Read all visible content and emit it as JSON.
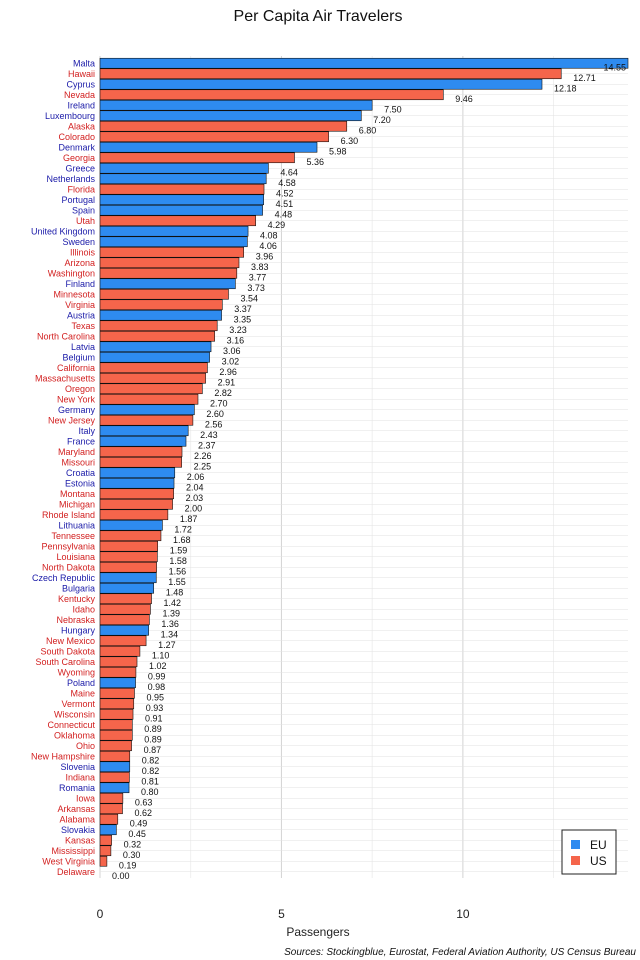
{
  "chart_data": {
    "type": "bar",
    "orientation": "horizontal",
    "title": "Per Capita Air Travelers",
    "xlabel": "Passengers",
    "source": "Sources: Stockingblue, Eurostat, Federal Aviation Authority, US Census Bureau",
    "xlim": [
      0,
      14.55
    ],
    "xticks": [
      0,
      5,
      10
    ],
    "grid": true,
    "legend_position": "bottom-right",
    "legend": [
      {
        "name": "EU",
        "color": "#2e8bf0"
      },
      {
        "name": "US",
        "color": "#f5654b"
      }
    ],
    "colors": {
      "EU": "#2e8bf0",
      "US": "#f5654b",
      "label_EU": "#1a1aa8",
      "label_US": "#d21f1f"
    },
    "bars": [
      {
        "label": "Malta",
        "value": 14.55,
        "group": "EU"
      },
      {
        "label": "Hawaii",
        "value": 12.71,
        "group": "US"
      },
      {
        "label": "Cyprus",
        "value": 12.18,
        "group": "EU"
      },
      {
        "label": "Nevada",
        "value": 9.46,
        "group": "US"
      },
      {
        "label": "Ireland",
        "value": 7.5,
        "group": "EU"
      },
      {
        "label": "Luxembourg",
        "value": 7.2,
        "group": "EU"
      },
      {
        "label": "Alaska",
        "value": 6.8,
        "group": "US"
      },
      {
        "label": "Colorado",
        "value": 6.3,
        "group": "US"
      },
      {
        "label": "Denmark",
        "value": 5.98,
        "group": "EU"
      },
      {
        "label": "Georgia",
        "value": 5.36,
        "group": "US"
      },
      {
        "label": "Greece",
        "value": 4.64,
        "group": "EU"
      },
      {
        "label": "Netherlands",
        "value": 4.58,
        "group": "EU"
      },
      {
        "label": "Florida",
        "value": 4.52,
        "group": "US"
      },
      {
        "label": "Portugal",
        "value": 4.51,
        "group": "EU"
      },
      {
        "label": "Spain",
        "value": 4.48,
        "group": "EU"
      },
      {
        "label": "Utah",
        "value": 4.29,
        "group": "US"
      },
      {
        "label": "United Kingdom",
        "value": 4.08,
        "group": "EU"
      },
      {
        "label": "Sweden",
        "value": 4.06,
        "group": "EU"
      },
      {
        "label": "Illinois",
        "value": 3.96,
        "group": "US"
      },
      {
        "label": "Arizona",
        "value": 3.83,
        "group": "US"
      },
      {
        "label": "Washington",
        "value": 3.77,
        "group": "US"
      },
      {
        "label": "Finland",
        "value": 3.73,
        "group": "EU"
      },
      {
        "label": "Minnesota",
        "value": 3.54,
        "group": "US"
      },
      {
        "label": "Virginia",
        "value": 3.37,
        "group": "US"
      },
      {
        "label": "Austria",
        "value": 3.35,
        "group": "EU"
      },
      {
        "label": "Texas",
        "value": 3.23,
        "group": "US"
      },
      {
        "label": "North Carolina",
        "value": 3.16,
        "group": "US"
      },
      {
        "label": "Latvia",
        "value": 3.06,
        "group": "EU"
      },
      {
        "label": "Belgium",
        "value": 3.02,
        "group": "EU"
      },
      {
        "label": "California",
        "value": 2.96,
        "group": "US"
      },
      {
        "label": "Massachusetts",
        "value": 2.91,
        "group": "US"
      },
      {
        "label": "Oregon",
        "value": 2.82,
        "group": "US"
      },
      {
        "label": "New York",
        "value": 2.7,
        "group": "US"
      },
      {
        "label": "Germany",
        "value": 2.6,
        "group": "EU"
      },
      {
        "label": "New Jersey",
        "value": 2.56,
        "group": "US"
      },
      {
        "label": "Italy",
        "value": 2.43,
        "group": "EU"
      },
      {
        "label": "France",
        "value": 2.37,
        "group": "EU"
      },
      {
        "label": "Maryland",
        "value": 2.26,
        "group": "US"
      },
      {
        "label": "Missouri",
        "value": 2.25,
        "group": "US"
      },
      {
        "label": "Croatia",
        "value": 2.06,
        "group": "EU"
      },
      {
        "label": "Estonia",
        "value": 2.04,
        "group": "EU"
      },
      {
        "label": "Montana",
        "value": 2.03,
        "group": "US"
      },
      {
        "label": "Michigan",
        "value": 2.0,
        "group": "US"
      },
      {
        "label": "Rhode Island",
        "value": 1.87,
        "group": "US"
      },
      {
        "label": "Lithuania",
        "value": 1.72,
        "group": "EU"
      },
      {
        "label": "Tennessee",
        "value": 1.68,
        "group": "US"
      },
      {
        "label": "Pennsylvania",
        "value": 1.59,
        "group": "US"
      },
      {
        "label": "Louisiana",
        "value": 1.58,
        "group": "US"
      },
      {
        "label": "North Dakota",
        "value": 1.56,
        "group": "US"
      },
      {
        "label": "Czech Republic",
        "value": 1.55,
        "group": "EU"
      },
      {
        "label": "Bulgaria",
        "value": 1.48,
        "group": "EU"
      },
      {
        "label": "Kentucky",
        "value": 1.42,
        "group": "US"
      },
      {
        "label": "Idaho",
        "value": 1.39,
        "group": "US"
      },
      {
        "label": "Nebraska",
        "value": 1.36,
        "group": "US"
      },
      {
        "label": "Hungary",
        "value": 1.34,
        "group": "EU"
      },
      {
        "label": "New Mexico",
        "value": 1.27,
        "group": "US"
      },
      {
        "label": "South Dakota",
        "value": 1.1,
        "group": "US"
      },
      {
        "label": "South Carolina",
        "value": 1.02,
        "group": "US"
      },
      {
        "label": "Wyoming",
        "value": 0.99,
        "group": "US"
      },
      {
        "label": "Poland",
        "value": 0.98,
        "group": "EU"
      },
      {
        "label": "Maine",
        "value": 0.95,
        "group": "US"
      },
      {
        "label": "Vermont",
        "value": 0.93,
        "group": "US"
      },
      {
        "label": "Wisconsin",
        "value": 0.91,
        "group": "US"
      },
      {
        "label": "Connecticut",
        "value": 0.89,
        "group": "US"
      },
      {
        "label": "Oklahoma",
        "value": 0.89,
        "group": "US"
      },
      {
        "label": "Ohio",
        "value": 0.87,
        "group": "US"
      },
      {
        "label": "New Hampshire",
        "value": 0.82,
        "group": "US"
      },
      {
        "label": "Slovenia",
        "value": 0.82,
        "group": "EU"
      },
      {
        "label": "Indiana",
        "value": 0.81,
        "group": "US"
      },
      {
        "label": "Romania",
        "value": 0.8,
        "group": "EU"
      },
      {
        "label": "Iowa",
        "value": 0.63,
        "group": "US"
      },
      {
        "label": "Arkansas",
        "value": 0.62,
        "group": "US"
      },
      {
        "label": "Alabama",
        "value": 0.49,
        "group": "US"
      },
      {
        "label": "Slovakia",
        "value": 0.45,
        "group": "EU"
      },
      {
        "label": "Kansas",
        "value": 0.32,
        "group": "US"
      },
      {
        "label": "Mississippi",
        "value": 0.3,
        "group": "US"
      },
      {
        "label": "West Virginia",
        "value": 0.19,
        "group": "US"
      },
      {
        "label": "Delaware",
        "value": 0.0,
        "group": "US"
      }
    ]
  }
}
